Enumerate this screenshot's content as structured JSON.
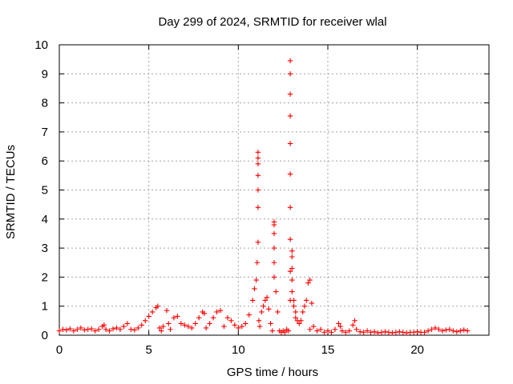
{
  "chart_data": {
    "type": "scatter",
    "title": "Day 299 of 2024, SRMTID for receiver wlal",
    "xlabel": "GPS time / hours",
    "ylabel": "SRMTID / TECUs",
    "xlim": [
      0,
      24
    ],
    "ylim": [
      0,
      10
    ],
    "xticks": [
      0,
      5,
      10,
      15,
      20
    ],
    "yticks": [
      0,
      1,
      2,
      3,
      4,
      5,
      6,
      7,
      8,
      9,
      10
    ],
    "xtick_labels": [
      "0",
      "5",
      "10",
      "15",
      "20"
    ],
    "ytick_labels": [
      "0",
      "1",
      "2",
      "3",
      "4",
      "5",
      "6",
      "7",
      "8",
      "9",
      "10"
    ],
    "grid": true,
    "marker": "+",
    "color": "#ff0000",
    "series": [
      {
        "name": "SRMTID",
        "x": [
          0.0,
          0.2,
          0.4,
          0.6,
          0.8,
          1.0,
          1.2,
          1.4,
          1.6,
          1.8,
          2.0,
          2.2,
          2.4,
          2.5,
          2.6,
          2.8,
          3.0,
          3.2,
          3.4,
          3.6,
          3.8,
          4.0,
          4.2,
          4.4,
          4.6,
          4.8,
          5.0,
          5.2,
          5.4,
          5.5,
          5.6,
          5.7,
          5.8,
          6.0,
          6.1,
          6.2,
          6.4,
          6.6,
          6.8,
          7.0,
          7.2,
          7.4,
          7.6,
          7.8,
          8.0,
          8.1,
          8.2,
          8.4,
          8.6,
          8.8,
          9.0,
          9.2,
          9.4,
          9.6,
          9.8,
          10.0,
          10.2,
          10.4,
          10.6,
          10.8,
          10.9,
          11.0,
          11.05,
          11.1,
          11.1,
          11.1,
          11.1,
          11.1,
          11.1,
          11.1,
          11.15,
          11.2,
          11.3,
          11.4,
          11.5,
          11.6,
          11.7,
          11.8,
          11.9,
          12.0,
          12.0,
          12.0,
          12.0,
          12.0,
          12.0,
          12.1,
          12.2,
          12.3,
          12.4,
          12.5,
          12.6,
          12.7,
          12.8,
          12.9,
          12.9,
          12.9,
          12.9,
          12.9,
          12.9,
          12.9,
          12.9,
          12.9,
          12.9,
          13.0,
          13.0,
          13.0,
          13.0,
          13.0,
          13.1,
          13.1,
          13.2,
          13.2,
          13.3,
          13.4,
          13.5,
          13.6,
          13.7,
          13.8,
          13.9,
          14.0,
          14.0,
          14.1,
          14.2,
          14.4,
          14.6,
          14.8,
          15.0,
          15.2,
          15.4,
          15.6,
          15.7,
          15.8,
          16.0,
          16.2,
          16.4,
          16.5,
          16.6,
          16.8,
          17.0,
          17.2,
          17.4,
          17.6,
          17.8,
          18.0,
          18.2,
          18.4,
          18.6,
          18.8,
          19.0,
          19.2,
          19.4,
          19.6,
          19.8,
          20.0,
          20.2,
          20.4,
          20.6,
          20.8,
          21.0,
          21.2,
          21.4,
          21.6,
          21.8,
          22.0,
          22.2,
          22.4,
          22.6,
          22.8
        ],
        "y": [
          0.15,
          0.2,
          0.18,
          0.22,
          0.15,
          0.2,
          0.25,
          0.18,
          0.2,
          0.22,
          0.15,
          0.2,
          0.3,
          0.35,
          0.2,
          0.15,
          0.22,
          0.25,
          0.2,
          0.3,
          0.4,
          0.2,
          0.18,
          0.25,
          0.35,
          0.5,
          0.65,
          0.8,
          0.95,
          1.0,
          0.25,
          0.15,
          0.3,
          0.85,
          0.4,
          0.2,
          0.6,
          0.65,
          0.4,
          0.35,
          0.3,
          0.25,
          0.4,
          0.6,
          0.8,
          0.75,
          0.25,
          0.4,
          0.6,
          0.8,
          0.85,
          0.3,
          0.6,
          0.5,
          0.35,
          0.25,
          0.3,
          0.4,
          0.7,
          1.2,
          1.6,
          1.9,
          2.5,
          3.2,
          4.4,
          5.0,
          5.5,
          5.9,
          6.1,
          6.3,
          0.5,
          0.3,
          0.8,
          1.0,
          1.2,
          1.3,
          0.9,
          0.4,
          0.15,
          3.9,
          3.8,
          3.5,
          3.0,
          2.5,
          2.0,
          1.5,
          0.8,
          0.15,
          0.1,
          0.15,
          0.1,
          0.2,
          0.15,
          9.45,
          9.0,
          8.3,
          7.55,
          6.6,
          5.55,
          4.4,
          3.3,
          2.2,
          1.2,
          2.9,
          2.7,
          2.3,
          1.9,
          1.5,
          1.2,
          1.0,
          0.8,
          0.6,
          0.5,
          0.4,
          0.5,
          0.8,
          1.0,
          1.2,
          1.8,
          1.9,
          0.2,
          1.1,
          0.3,
          0.15,
          0.2,
          0.1,
          0.15,
          0.1,
          0.2,
          0.4,
          0.3,
          0.15,
          0.1,
          0.15,
          0.35,
          0.5,
          0.2,
          0.12,
          0.1,
          0.15,
          0.1,
          0.12,
          0.08,
          0.1,
          0.12,
          0.1,
          0.08,
          0.1,
          0.12,
          0.1,
          0.08,
          0.1,
          0.1,
          0.12,
          0.1,
          0.1,
          0.15,
          0.2,
          0.25,
          0.2,
          0.15,
          0.18,
          0.2,
          0.15,
          0.12,
          0.15,
          0.18,
          0.15
        ]
      }
    ]
  }
}
